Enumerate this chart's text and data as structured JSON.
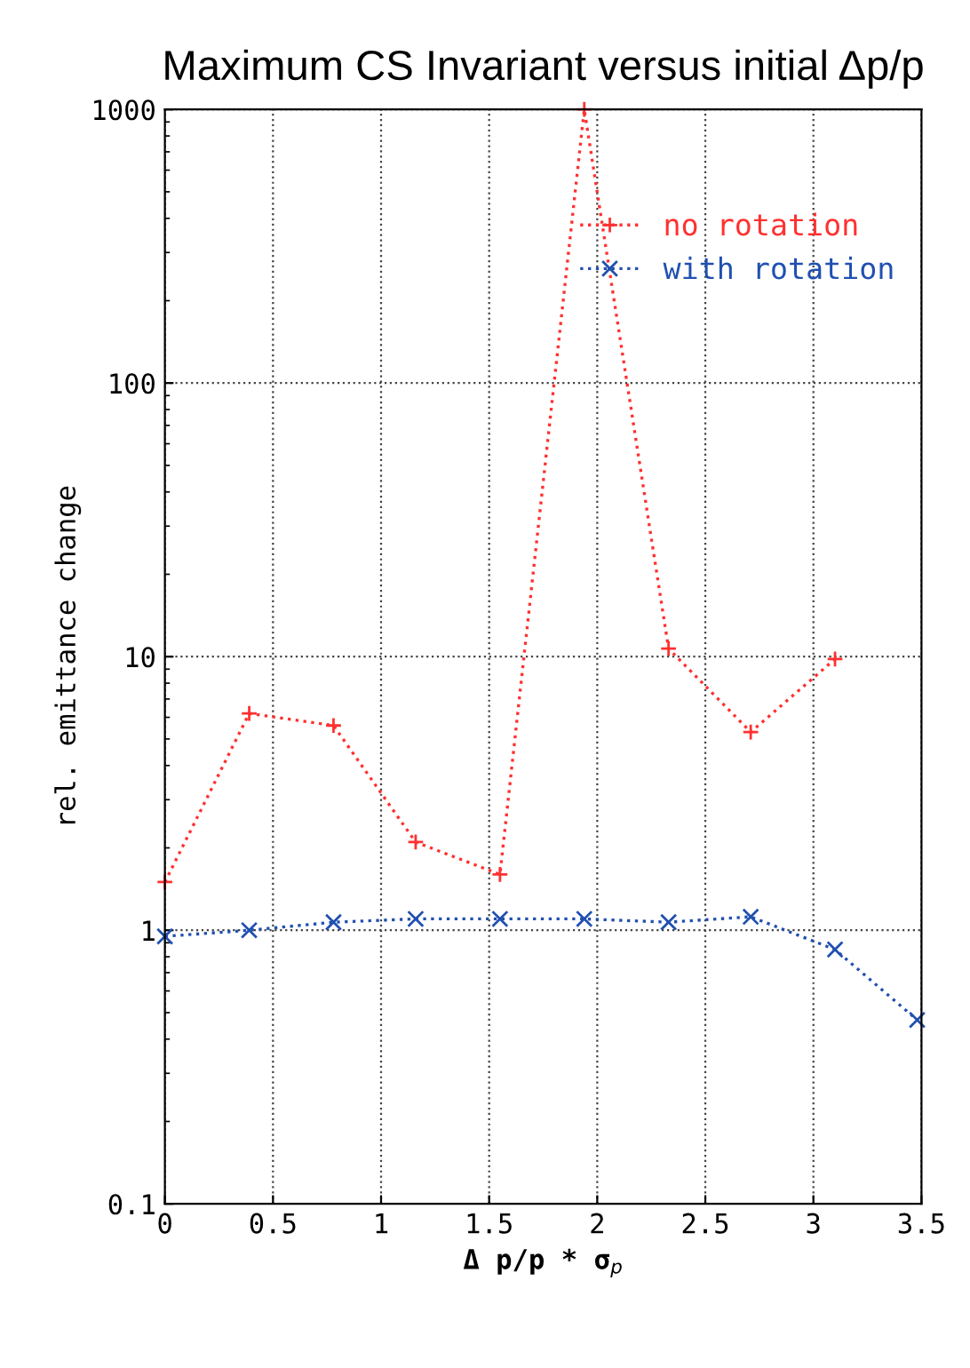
{
  "chart_data": {
    "type": "line",
    "title": "Maximum CS Invariant versus initial Δp/p",
    "xlabel": "Δ p/p * σ$_{p}$",
    "ylabel": "rel. emittance change",
    "x": [
      0,
      0.39,
      0.78,
      1.16,
      1.55,
      1.94,
      2.33,
      2.71,
      3.1,
      3.48
    ],
    "series": [
      {
        "name": "no rotation",
        "color": "#ff3030",
        "marker": "plus",
        "values": [
          1.5,
          6.2,
          5.6,
          2.1,
          1.6,
          1000,
          10.7,
          5.3,
          9.8,
          null
        ]
      },
      {
        "name": "with rotation",
        "color": "#2050b0",
        "marker": "cross",
        "values": [
          0.95,
          1.0,
          1.07,
          1.1,
          1.1,
          1.1,
          1.07,
          1.12,
          0.85,
          0.47
        ]
      }
    ],
    "xlim": [
      0,
      3.5
    ],
    "xticks": [
      0,
      0.5,
      1,
      1.5,
      2,
      2.5,
      3,
      3.5
    ],
    "ylim": [
      0.1,
      1000
    ],
    "yticks": [
      0.1,
      1,
      10,
      100,
      1000
    ],
    "log": "y",
    "grid": true,
    "legend": "top right",
    "line_style": "dotted"
  }
}
